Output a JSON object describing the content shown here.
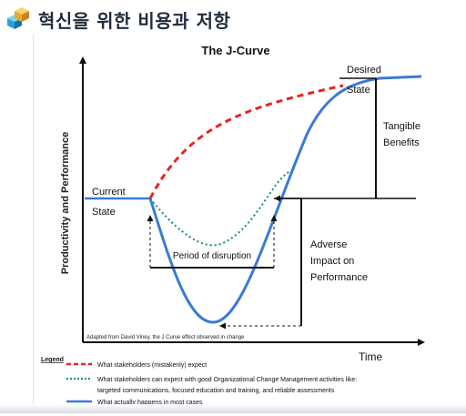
{
  "header": {
    "title": "혁신을 위한 비용과 저항",
    "icon": "stacked-cubes-icon"
  },
  "diagram": {
    "title": "The J-Curve",
    "y_axis_label": "Productivity and Performance",
    "x_axis_label": "Time",
    "labels": {
      "current_1": "Current",
      "current_2": "State",
      "desired_1": "Desired",
      "desired_2": "State",
      "tangible_1": "Tangible",
      "tangible_2": "Benefits",
      "period": "Period of disruption",
      "adverse_1": "Adverse",
      "adverse_2": "Impact on",
      "adverse_3": "Performance",
      "source": "Adapted from David Viney, the J Curve effect observed in change"
    },
    "legend": {
      "title": "Legend",
      "item1": "What stakeholders (mistakenly) expect",
      "item2_line1": "What stakeholders can expect with good Organizational Change Management activities like:",
      "item2_line2": "targeted communications, focused education and training, and reliable assessments",
      "item3": "What actually happens in most cases"
    },
    "colors": {
      "expected": "#e8231f",
      "good_ocm": "#138a8a",
      "actual": "#3a7bd5",
      "axis": "#111111"
    }
  }
}
